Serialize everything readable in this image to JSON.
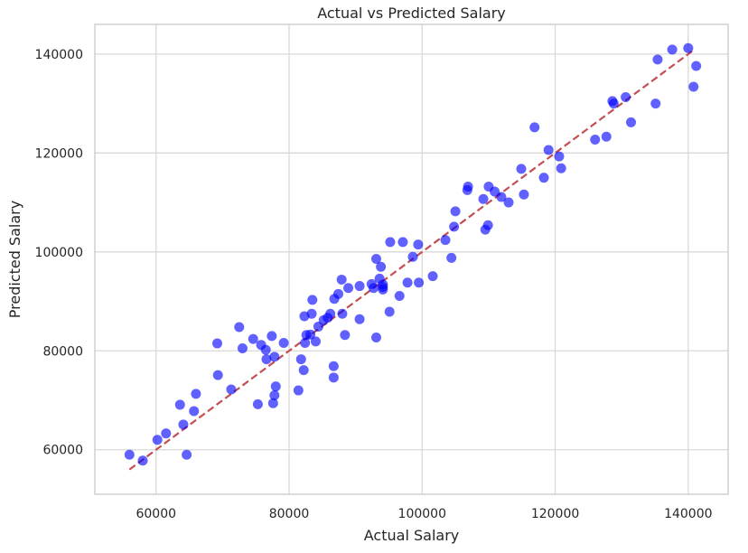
{
  "chart_data": {
    "type": "scatter",
    "title": "Actual vs Predicted Salary",
    "xlabel": "Actual Salary",
    "ylabel": "Predicted Salary",
    "xlim": [
      50800,
      146000
    ],
    "ylim": [
      51000,
      146000
    ],
    "xticks": [
      60000,
      80000,
      100000,
      120000,
      140000
    ],
    "yticks": [
      60000,
      80000,
      100000,
      120000,
      140000
    ],
    "grid": true,
    "colors": {
      "points": "#0000ff",
      "reference_line": "#c44e52",
      "grid": "#d9d9d9",
      "axes": "#c8c8c8"
    },
    "reference_line": {
      "style": "dashed",
      "from": [
        56000,
        56000
      ],
      "to": [
        141000,
        141000
      ]
    },
    "series": [
      {
        "points": [
          [
            56000,
            59000
          ],
          [
            58000,
            57800
          ],
          [
            60200,
            62000
          ],
          [
            61500,
            63300
          ],
          [
            63600,
            69100
          ],
          [
            64100,
            65100
          ],
          [
            64600,
            59000
          ],
          [
            65700,
            67800
          ],
          [
            66000,
            71300
          ],
          [
            69200,
            81500
          ],
          [
            69300,
            75100
          ],
          [
            71300,
            72200
          ],
          [
            72500,
            84800
          ],
          [
            73000,
            80500
          ],
          [
            74600,
            82400
          ],
          [
            75300,
            69200
          ],
          [
            75800,
            81200
          ],
          [
            76500,
            80200
          ],
          [
            76600,
            78300
          ],
          [
            77400,
            83000
          ],
          [
            77600,
            69400
          ],
          [
            77800,
            78800
          ],
          [
            77800,
            71000
          ],
          [
            78000,
            72800
          ],
          [
            79200,
            81600
          ],
          [
            81400,
            72000
          ],
          [
            81800,
            78300
          ],
          [
            82200,
            76100
          ],
          [
            82300,
            87000
          ],
          [
            82400,
            81600
          ],
          [
            82600,
            83200
          ],
          [
            83200,
            83300
          ],
          [
            83400,
            87500
          ],
          [
            83500,
            90300
          ],
          [
            84000,
            81900
          ],
          [
            84400,
            84900
          ],
          [
            85200,
            86200
          ],
          [
            85800,
            86700
          ],
          [
            86200,
            87500
          ],
          [
            86700,
            76900
          ],
          [
            86700,
            74600
          ],
          [
            86800,
            90500
          ],
          [
            87400,
            91500
          ],
          [
            87900,
            94400
          ],
          [
            88000,
            87500
          ],
          [
            88400,
            83200
          ],
          [
            88900,
            92700
          ],
          [
            90600,
            93100
          ],
          [
            90600,
            86400
          ],
          [
            92400,
            93500
          ],
          [
            92700,
            92700
          ],
          [
            93100,
            98600
          ],
          [
            93100,
            82700
          ],
          [
            93600,
            94600
          ],
          [
            93800,
            97000
          ],
          [
            94100,
            93400
          ],
          [
            94100,
            92400
          ],
          [
            94100,
            92900
          ],
          [
            95100,
            87900
          ],
          [
            95200,
            102000
          ],
          [
            96600,
            91100
          ],
          [
            97100,
            102000
          ],
          [
            97800,
            93800
          ],
          [
            98600,
            99000
          ],
          [
            99400,
            101500
          ],
          [
            99500,
            93800
          ],
          [
            101600,
            95100
          ],
          [
            103500,
            102400
          ],
          [
            104400,
            98800
          ],
          [
            104800,
            105100
          ],
          [
            105000,
            108200
          ],
          [
            106800,
            112500
          ],
          [
            106900,
            113200
          ],
          [
            109200,
            110700
          ],
          [
            109500,
            104500
          ],
          [
            109900,
            105400
          ],
          [
            110000,
            113200
          ],
          [
            110900,
            112200
          ],
          [
            111900,
            111100
          ],
          [
            113000,
            110000
          ],
          [
            114900,
            116800
          ],
          [
            115300,
            111600
          ],
          [
            116900,
            125200
          ],
          [
            118300,
            115000
          ],
          [
            119000,
            120600
          ],
          [
            120600,
            119300
          ],
          [
            120900,
            116900
          ],
          [
            126000,
            122700
          ],
          [
            127700,
            123300
          ],
          [
            128600,
            130500
          ],
          [
            128800,
            130000
          ],
          [
            130600,
            131300
          ],
          [
            131400,
            126200
          ],
          [
            135100,
            130000
          ],
          [
            135400,
            138900
          ],
          [
            137600,
            140900
          ],
          [
            140000,
            141200
          ],
          [
            140800,
            133400
          ],
          [
            141200,
            137600
          ]
        ]
      }
    ]
  }
}
